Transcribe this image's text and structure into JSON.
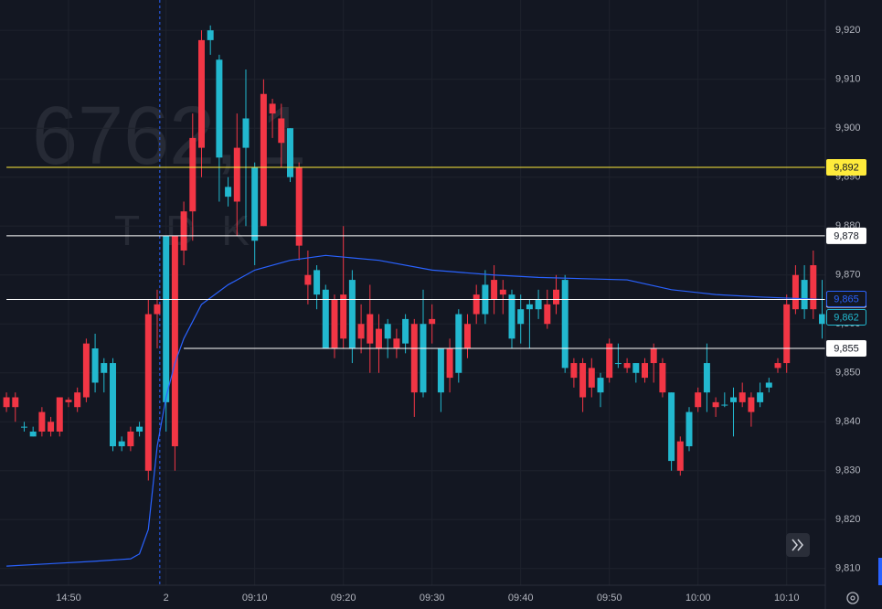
{
  "chart_data": {
    "type": "candlestick",
    "watermark": {
      "symbol": "6762, 1",
      "name": "TDK"
    },
    "xlim": [
      -0.73,
      92.36
    ],
    "ylim": [
      9806.6,
      9926.2
    ],
    "xticks": [
      {
        "value": 7,
        "label": "14:50"
      },
      {
        "value": 18,
        "label": "2"
      },
      {
        "value": 28,
        "label": "09:10"
      },
      {
        "value": 38,
        "label": "09:20"
      },
      {
        "value": 48,
        "label": "09:30"
      },
      {
        "value": 58,
        "label": "09:40"
      },
      {
        "value": 68,
        "label": "09:50"
      },
      {
        "value": 78,
        "label": "10:00"
      },
      {
        "value": 88,
        "label": "10:10"
      }
    ],
    "yticks": [
      {
        "value": 9810,
        "label": "9,810"
      },
      {
        "value": 9820,
        "label": "9,820"
      },
      {
        "value": 9830,
        "label": "9,830"
      },
      {
        "value": 9840,
        "label": "9,840"
      },
      {
        "value": 9850,
        "label": "9,850"
      },
      {
        "value": 9860,
        "label": "9,860"
      },
      {
        "value": 9870,
        "label": "9,870"
      },
      {
        "value": 9880,
        "label": "9,880"
      },
      {
        "value": 9890,
        "label": "9,890"
      },
      {
        "value": 9900,
        "label": "9,900"
      },
      {
        "value": 9910,
        "label": "9,910"
      },
      {
        "value": 9920,
        "label": "9,920"
      }
    ],
    "grid": true,
    "up_color": "#22b8cf",
    "down_color": "#f23645",
    "open": [
      9845,
      9845,
      9839,
      9837,
      9842,
      9840,
      9845,
      9844.5,
      9846,
      9856,
      9848,
      9850,
      9835,
      9835,
      9838,
      9838,
      9862,
      9864,
      9844,
      9878,
      9883,
      9898,
      9918,
      9918,
      9894,
      9886,
      9896,
      9896,
      9877,
      9907,
      9905,
      9902,
      9890,
      9892,
      9870,
      9866,
      9855,
      9865,
      9866,
      9855,
      9860,
      9862,
      9859,
      9857,
      9857,
      9856,
      9860,
      9846,
      9861,
      9846,
      9855,
      9850,
      9860,
      9866,
      9862,
      9869,
      9867,
      9857,
      9860,
      9863,
      9863,
      9864,
      9867,
      9851,
      9852,
      9852,
      9851,
      9846,
      9856,
      9852,
      9852,
      9850,
      9852,
      9855,
      9852,
      9832,
      9836,
      9835,
      9846,
      9846,
      9844,
      9843.5,
      9844,
      9846,
      9845,
      9844,
      9847,
      9852,
      9864,
      9870,
      9863,
      9872,
      9860
    ],
    "high": [
      9846,
      9846,
      9840,
      9839,
      9843,
      9841,
      9845,
      9845,
      9847,
      9857,
      9858,
      9853,
      9853,
      9837,
      9839,
      9840,
      9865,
      9867,
      9878,
      9878,
      9885,
      9903,
      9920,
      9921,
      9915,
      9890,
      9903,
      9912,
      9893,
      9910,
      9906,
      9905,
      9900,
      9893,
      9875,
      9872,
      9868,
      9866,
      9880,
      9871,
      9864,
      9868,
      9862,
      9861,
      9859,
      9862,
      9861,
      9867,
      9864,
      9855,
      9857,
      9863,
      9862,
      9868,
      9871,
      9872,
      9869,
      9867,
      9866,
      9865,
      9867,
      9867,
      9870,
      9870,
      9853,
      9853,
      9853,
      9850,
      9857,
      9856,
      9853,
      9852,
      9853,
      9856,
      9853,
      9846,
      9837,
      9843,
      9847,
      9856,
      9845,
      9846,
      9847,
      9848,
      9846,
      9848,
      9849,
      9853,
      9866,
      9872,
      9872,
      9875,
      9869
    ],
    "low": [
      9842,
      9840,
      9838,
      9837,
      9837,
      9837,
      9837,
      9843,
      9842,
      9844,
      9846,
      9846,
      9834,
      9834,
      9834,
      9837,
      9828,
      9855,
      9838,
      9830,
      9872,
      9877,
      9890,
      9915,
      9885,
      9884,
      9878,
      9880,
      9872,
      9880,
      9898,
      9892,
      9889,
      9873,
      9864,
      9863,
      9855,
      9853,
      9855,
      9852,
      9854,
      9850,
      9850,
      9853,
      9853,
      9854,
      9841,
      9845,
      9856,
      9842,
      9846,
      9848,
      9853,
      9860,
      9860,
      9862,
      9862,
      9855,
      9856,
      9855,
      9861,
      9859,
      9862,
      9850,
      9847,
      9842,
      9845,
      9843,
      9848,
      9851,
      9850,
      9848,
      9848,
      9848,
      9845,
      9830,
      9829,
      9834,
      9842,
      9842,
      9841,
      9843,
      9837,
      9843,
      9839,
      9843,
      9846,
      9850,
      9850,
      9862,
      9861,
      9861,
      9857
    ],
    "close": [
      9843,
      9843,
      9839,
      9838,
      9838,
      9838,
      9838,
      9844,
      9843,
      9845,
      9855,
      9852,
      9852,
      9836,
      9835,
      9839,
      9830,
      9862,
      9878,
      9835,
      9875,
      9883,
      9896,
      9920,
      9914,
      9888,
      9885,
      9902,
      9892,
      9880,
      9903,
      9897,
      9900,
      9876,
      9868,
      9871,
      9867,
      9855,
      9857,
      9869,
      9857,
      9856,
      9855,
      9860,
      9855,
      9861,
      9846,
      9860,
      9860,
      9855,
      9849,
      9862,
      9855,
      9862,
      9868,
      9865,
      9866,
      9866,
      9863,
      9864,
      9865,
      9860,
      9864,
      9869,
      9849,
      9845,
      9847,
      9849,
      9849,
      9852,
      9851,
      9852,
      9849,
      9852,
      9846,
      9846,
      9830,
      9842,
      9843,
      9852,
      9843,
      9843.5,
      9845,
      9844,
      9842,
      9846,
      9848,
      9851,
      9852,
      9863,
      9869,
      9863,
      9862
    ],
    "ma": {
      "color": "#2962ff",
      "x": [
        0,
        5,
        10,
        14,
        15,
        16,
        17,
        18,
        19,
        20,
        22,
        25,
        28,
        32,
        36,
        42,
        48,
        55,
        60,
        70,
        75,
        80,
        85,
        92
      ],
      "values": [
        9810.5,
        9811,
        9811.5,
        9812,
        9813,
        9818,
        9835,
        9845,
        9852,
        9857,
        9864,
        9868,
        9871,
        9873,
        9874,
        9873,
        9871,
        9870,
        9869.5,
        9869,
        9867,
        9866,
        9865.5,
        9865
      ]
    },
    "price_lines": [
      {
        "value": 9892,
        "label": "9,892",
        "color": "#ffeb3b",
        "start": 0
      },
      {
        "value": 9878,
        "label": "9,878",
        "color": "#ffffff",
        "start": 0
      },
      {
        "value": 9865,
        "label": "9,865",
        "color": "#ffffff",
        "start": 0
      },
      {
        "value": 9855,
        "label": "9,855",
        "color": "#ffffff",
        "start": 20
      }
    ],
    "price_labels": [
      {
        "value": 9865,
        "label": "9,865",
        "color": "#2962ff"
      },
      {
        "value": 9862,
        "label": "9,862",
        "color": "#22b8cf"
      }
    ]
  }
}
